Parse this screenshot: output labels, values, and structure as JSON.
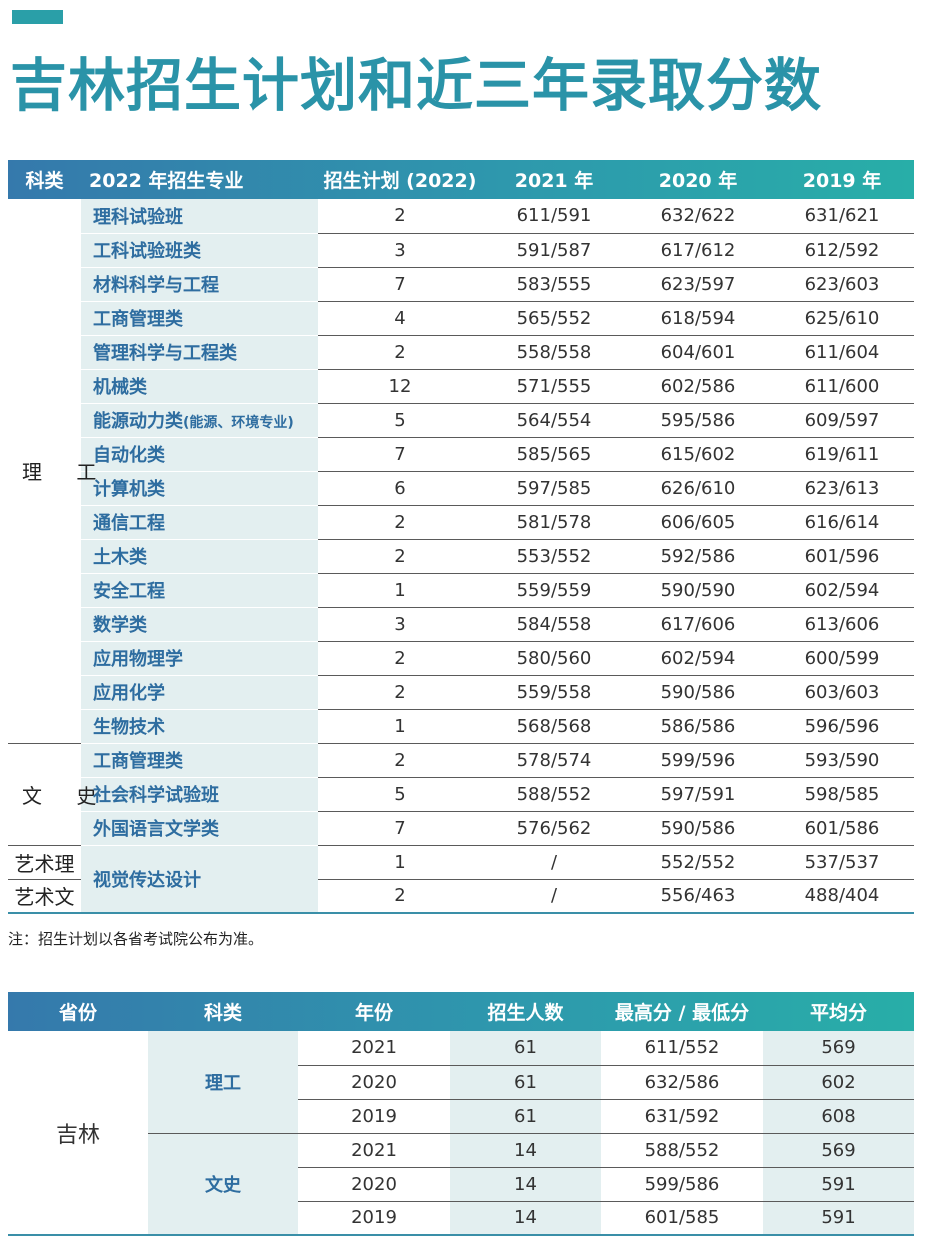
{
  "page": {
    "title": "吉林招生计划和近三年录取分数",
    "note": "注：招生计划以各省考试院公布为准。",
    "accent_color": "#2a93a8"
  },
  "plan_table": {
    "headers": [
      "科类",
      "2022 年招生专业",
      "招生计划 (2022)",
      "2021 年",
      "2020 年",
      "2019 年"
    ],
    "categories": [
      "理 工",
      "文 史",
      "艺术理",
      "艺术文"
    ],
    "rows": [
      {
        "major": "理科试验班",
        "plan": "2",
        "y2021": "611/591",
        "y2020": "632/622",
        "y2019": "631/621"
      },
      {
        "major": "工科试验班类",
        "plan": "3",
        "y2021": "591/587",
        "y2020": "617/612",
        "y2019": "612/592"
      },
      {
        "major": "材料科学与工程",
        "plan": "7",
        "y2021": "583/555",
        "y2020": "623/597",
        "y2019": "623/603"
      },
      {
        "major": "工商管理类",
        "plan": "4",
        "y2021": "565/552",
        "y2020": "618/594",
        "y2019": "625/610"
      },
      {
        "major": "管理科学与工程类",
        "plan": "2",
        "y2021": "558/558",
        "y2020": "604/601",
        "y2019": "611/604"
      },
      {
        "major": "机械类",
        "plan": "12",
        "y2021": "571/555",
        "y2020": "602/586",
        "y2019": "611/600"
      },
      {
        "major": "能源动力类",
        "major_note": "(能源、环境专业)",
        "plan": "5",
        "y2021": "564/554",
        "y2020": "595/586",
        "y2019": "609/597"
      },
      {
        "major": "自动化类",
        "plan": "7",
        "y2021": "585/565",
        "y2020": "615/602",
        "y2019": "619/611"
      },
      {
        "major": "计算机类",
        "plan": "6",
        "y2021": "597/585",
        "y2020": "626/610",
        "y2019": "623/613"
      },
      {
        "major": "通信工程",
        "plan": "2",
        "y2021": "581/578",
        "y2020": "606/605",
        "y2019": "616/614"
      },
      {
        "major": "土木类",
        "plan": "2",
        "y2021": "553/552",
        "y2020": "592/586",
        "y2019": "601/596"
      },
      {
        "major": "安全工程",
        "plan": "1",
        "y2021": "559/559",
        "y2020": "590/590",
        "y2019": "602/594"
      },
      {
        "major": "数学类",
        "plan": "3",
        "y2021": "584/558",
        "y2020": "617/606",
        "y2019": "613/606"
      },
      {
        "major": "应用物理学",
        "plan": "2",
        "y2021": "580/560",
        "y2020": "602/594",
        "y2019": "600/599"
      },
      {
        "major": "应用化学",
        "plan": "2",
        "y2021": "559/558",
        "y2020": "590/586",
        "y2019": "603/603"
      },
      {
        "major": "生物技术",
        "plan": "1",
        "y2021": "568/568",
        "y2020": "586/586",
        "y2019": "596/596"
      },
      {
        "major": "工商管理类",
        "plan": "2",
        "y2021": "578/574",
        "y2020": "599/596",
        "y2019": "593/590"
      },
      {
        "major": "社会科学试验班",
        "plan": "5",
        "y2021": "588/552",
        "y2020": "597/591",
        "y2019": "598/585"
      },
      {
        "major": "外国语言文学类",
        "plan": "7",
        "y2021": "576/562",
        "y2020": "590/586",
        "y2019": "601/586"
      },
      {
        "major": "视觉传达设计",
        "plan": "1",
        "y2021": "/",
        "y2020": "552/552",
        "y2019": "537/537"
      },
      {
        "plan": "2",
        "y2021": "/",
        "y2020": "556/463",
        "y2019": "488/404"
      }
    ]
  },
  "score_table": {
    "headers": [
      "省份",
      "科类",
      "年份",
      "招生人数",
      "最高分 / 最低分",
      "平均分"
    ],
    "province": "吉林",
    "kinds": [
      "理工",
      "文史"
    ],
    "rows": [
      {
        "year": "2021",
        "count": "61",
        "range": "611/552",
        "avg": "569"
      },
      {
        "year": "2020",
        "count": "61",
        "range": "632/586",
        "avg": "602"
      },
      {
        "year": "2019",
        "count": "61",
        "range": "631/592",
        "avg": "608"
      },
      {
        "year": "2021",
        "count": "14",
        "range": "588/552",
        "avg": "569"
      },
      {
        "year": "2020",
        "count": "14",
        "range": "599/586",
        "avg": "591"
      },
      {
        "year": "2019",
        "count": "14",
        "range": "601/585",
        "avg": "591"
      }
    ]
  }
}
